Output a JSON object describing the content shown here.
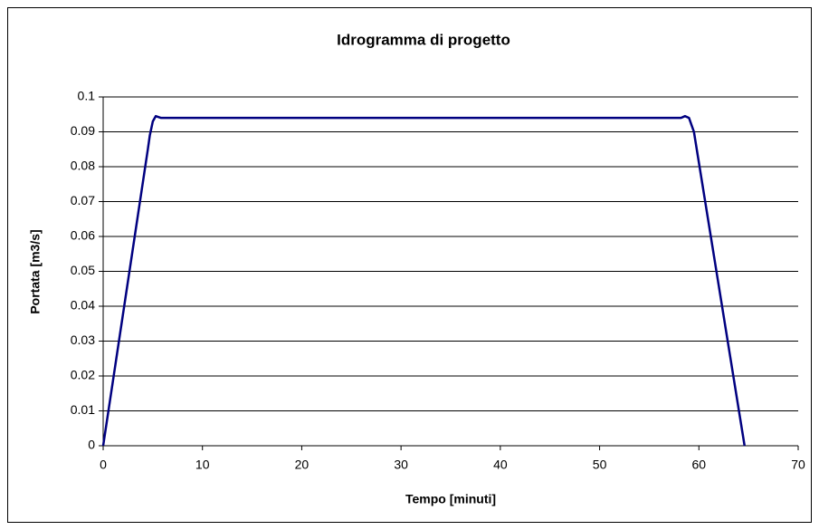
{
  "chart_data": {
    "type": "line",
    "title": "Idrogramma di progetto",
    "x_label": "Tempo [minuti]",
    "y_label": "Portata [m3/s]",
    "x": [
      0,
      4.5,
      4.7,
      5.0,
      5.3,
      5.8,
      58.2,
      58.6,
      59.0,
      59.5,
      64.6
    ],
    "series": [
      {
        "name": "Portata",
        "color": "#000080",
        "values": [
          0,
          0.085,
          0.089,
          0.093,
          0.0945,
          0.094,
          0.094,
          0.0945,
          0.094,
          0.09,
          0
        ]
      }
    ],
    "xlim": [
      0,
      70
    ],
    "xticks": [
      0,
      10,
      20,
      30,
      40,
      50,
      60,
      70
    ],
    "ylim": [
      0,
      0.1
    ],
    "yticks": [
      0,
      0.01,
      0.02,
      0.03,
      0.04,
      0.05,
      0.06,
      0.07,
      0.08,
      0.09,
      0.1
    ],
    "grid": true
  }
}
